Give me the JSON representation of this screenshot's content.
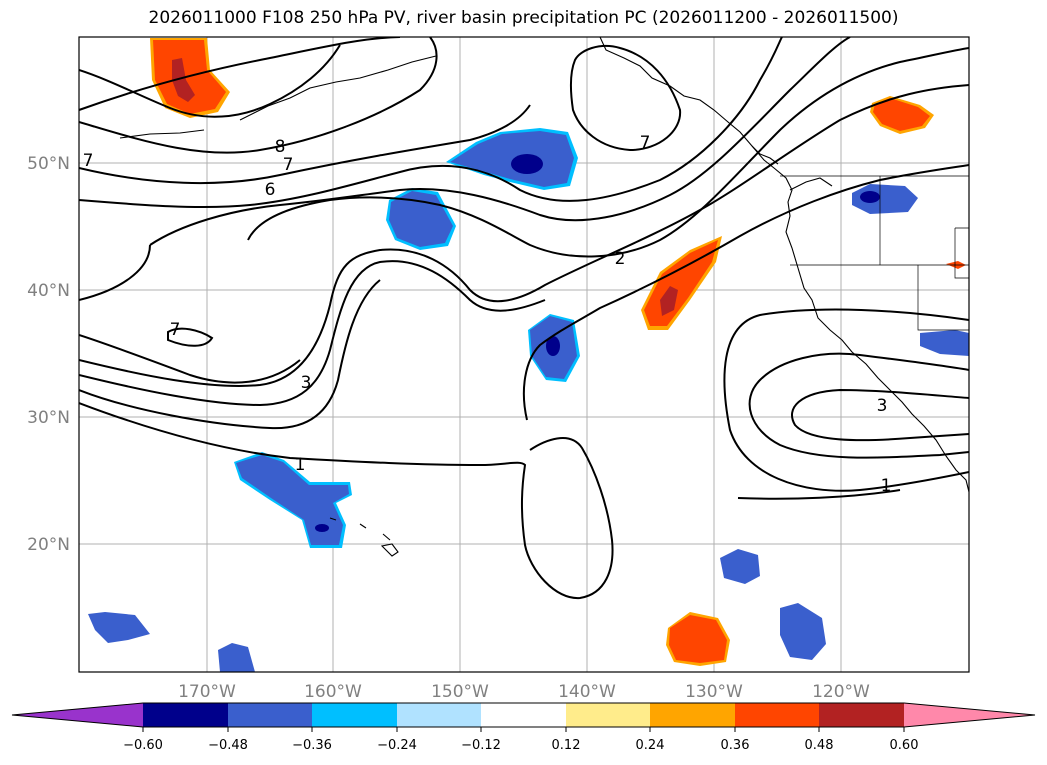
{
  "title": "2026011000 F108 250 hPa PV, river basin precipitation PC (2026011200 - 2026011500)",
  "map": {
    "lon_range": [
      180,
      110
    ],
    "lat_range": [
      10,
      60
    ],
    "lat_labels": [
      "20°N",
      "30°N",
      "40°N",
      "50°N"
    ],
    "lon_labels": [
      "170°W",
      "160°W",
      "150°W",
      "140°W",
      "130°W",
      "120°W"
    ],
    "contour_labels": [
      "8",
      "7",
      "6",
      "7",
      "3",
      "2",
      "1",
      "7",
      "3",
      "1",
      "7"
    ]
  },
  "colorbar": {
    "ticks": [
      "−0.60",
      "−0.48",
      "−0.36",
      "−0.24",
      "−0.12",
      "0.12",
      "0.24",
      "0.36",
      "0.48",
      "0.60"
    ],
    "colors": [
      "#9933cc",
      "#00008b",
      "#3a5fcd",
      "#00bfff",
      "#b0e2ff",
      "#ffffff",
      "#ffec8b",
      "#ffa500",
      "#ff4500",
      "#b22222",
      "#ff88aa"
    ]
  }
}
